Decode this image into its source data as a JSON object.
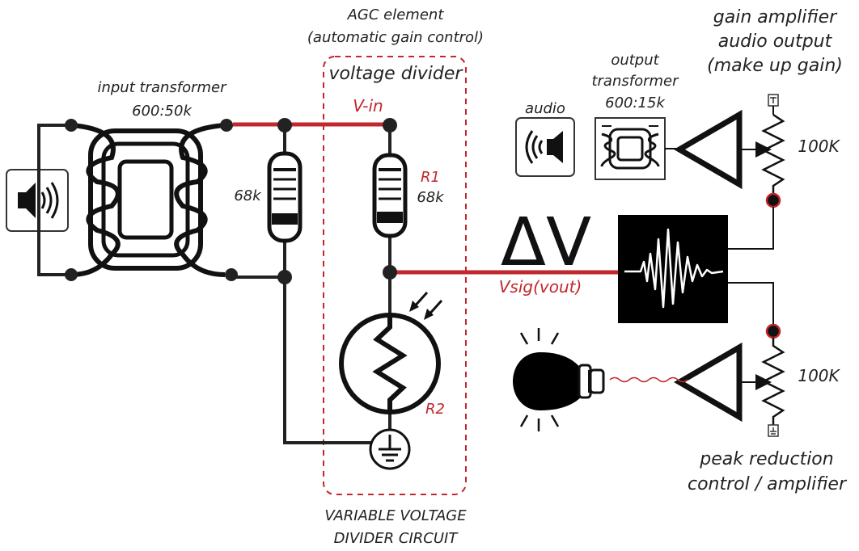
{
  "labels": {
    "agc_title": "AGC element",
    "agc_subtitle": "(automatic gain control)",
    "voltage_divider": "voltage divider",
    "input_transformer": "input transformer",
    "input_ratio": "600:50k",
    "r_left_value": "68k",
    "v_in": "V-in",
    "r1_name": "R1",
    "r1_value": "68k",
    "delta_v": "ΔV",
    "vsig": "Vsig(vout)",
    "r2_name": "R2",
    "footer_line1": "VARIABLE VOLTAGE",
    "footer_line2": "DIVIDER CIRCUIT",
    "audio": "audio",
    "output_transformer_line1": "output",
    "output_transformer_line2": "transformer",
    "output_ratio": "600:15k",
    "gain_amp_line1": "gain amplifier",
    "gain_amp_line2": "audio output",
    "gain_amp_line3": "(make up gain)",
    "pot_top_value": "100K",
    "pot_bottom_value": "100K",
    "peak_line1": "peak reduction",
    "peak_line2": "control / amplifier"
  },
  "icons": {
    "input_speaker": "speaker-icon",
    "output_speaker": "speaker-icon",
    "lamp": "light-bulb-icon",
    "ground": "ground-icon",
    "scope": "waveform-icon",
    "photo_arrows": "light-arrows-icon"
  },
  "colors": {
    "signal_wire": "#c1272d",
    "wire": "#222222",
    "scope_background": "#000000",
    "label_text": "#222222"
  }
}
